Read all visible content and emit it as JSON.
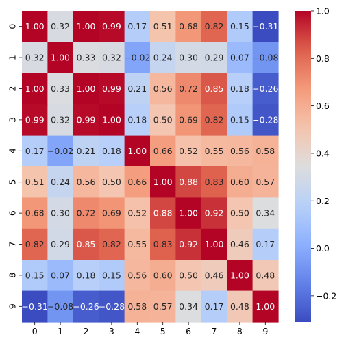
{
  "chart_data": {
    "type": "heatmap",
    "x_categories": [
      "0",
      "1",
      "2",
      "3",
      "4",
      "5",
      "6",
      "7",
      "8",
      "9"
    ],
    "y_categories": [
      "0",
      "1",
      "2",
      "3",
      "4",
      "5",
      "6",
      "7",
      "8",
      "9"
    ],
    "values": [
      [
        1.0,
        0.32,
        1.0,
        0.99,
        0.17,
        0.51,
        0.68,
        0.82,
        0.15,
        -0.31
      ],
      [
        0.32,
        1.0,
        0.33,
        0.32,
        -0.02,
        0.24,
        0.3,
        0.29,
        0.07,
        -0.08
      ],
      [
        1.0,
        0.33,
        1.0,
        0.99,
        0.21,
        0.56,
        0.72,
        0.85,
        0.18,
        -0.26
      ],
      [
        0.99,
        0.32,
        0.99,
        1.0,
        0.18,
        0.5,
        0.69,
        0.82,
        0.15,
        -0.28
      ],
      [
        0.17,
        -0.02,
        0.21,
        0.18,
        1.0,
        0.66,
        0.52,
        0.55,
        0.56,
        0.58
      ],
      [
        0.51,
        0.24,
        0.56,
        0.5,
        0.66,
        1.0,
        0.88,
        0.83,
        0.6,
        0.57
      ],
      [
        0.68,
        0.3,
        0.72,
        0.69,
        0.52,
        0.88,
        1.0,
        0.92,
        0.5,
        0.34
      ],
      [
        0.82,
        0.29,
        0.85,
        0.82,
        0.55,
        0.83,
        0.92,
        1.0,
        0.46,
        0.17
      ],
      [
        0.15,
        0.07,
        0.18,
        0.15,
        0.56,
        0.6,
        0.5,
        0.46,
        1.0,
        0.48
      ],
      [
        -0.31,
        -0.08,
        -0.26,
        -0.28,
        0.58,
        0.57,
        0.34,
        0.17,
        0.48,
        1.0
      ]
    ],
    "value_format": "2-decimal",
    "colormap": "coolwarm",
    "vmin": -0.31,
    "vmax": 1.0,
    "colorbar": {
      "ticks": [
        -0.2,
        0.0,
        0.2,
        0.4,
        0.6,
        0.8,
        1.0
      ],
      "tick_labels": [
        "−0.2",
        "0.0",
        "0.2",
        "0.4",
        "0.6",
        "0.8",
        "1.0"
      ]
    },
    "title": "",
    "xlabel": "",
    "ylabel": ""
  }
}
